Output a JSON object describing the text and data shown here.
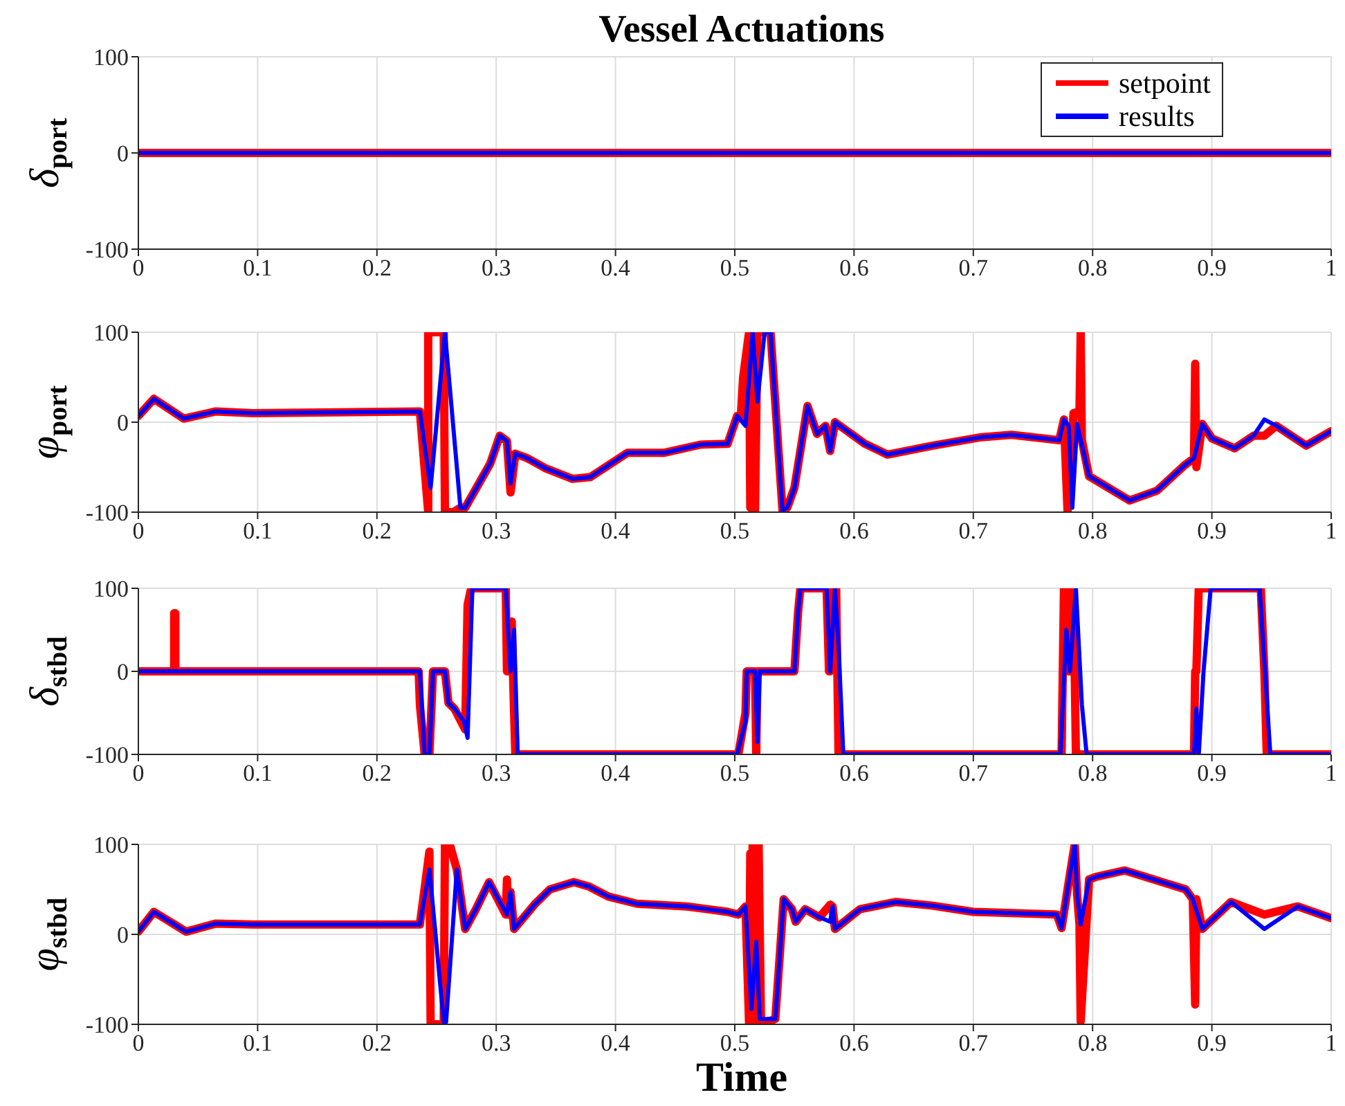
{
  "chart_data": [
    {
      "type": "line",
      "title": "Vessel Actuations",
      "ylabel": "δ$_{port}$",
      "xlim": [
        0,
        1
      ],
      "xticks": [
        0,
        0.1,
        0.2,
        0.3,
        0.4,
        0.5,
        0.6,
        0.7,
        0.8,
        0.9,
        1
      ],
      "ylim": [
        -100,
        100
      ],
      "yticks": [
        -100,
        0,
        100
      ],
      "grid": true,
      "legend": "top right",
      "series": [
        {
          "name": "setpoint",
          "color": "#ff0000",
          "x": [
            0,
            1
          ],
          "values": [
            0,
            0
          ]
        },
        {
          "name": "results",
          "color": "#0000ff",
          "x": [
            0,
            1
          ],
          "values": [
            0,
            0
          ]
        }
      ]
    },
    {
      "type": "line",
      "ylabel": "φ$_{port}$",
      "xlim": [
        0,
        1
      ],
      "xticks": [
        0,
        0.1,
        0.2,
        0.3,
        0.4,
        0.5,
        0.6,
        0.7,
        0.8,
        0.9,
        1
      ],
      "ylim": [
        -100,
        100
      ],
      "yticks": [
        -100,
        0,
        100
      ],
      "grid": true,
      "series": [
        {
          "color": "#ff0000",
          "x": [
            0,
            0.013,
            0.038,
            0.065,
            0.096,
            0.236,
            0.243,
            0.243,
            0.256,
            0.257,
            0.264,
            0.27,
            0.274,
            0.295,
            0.303,
            0.309,
            0.312,
            0.316,
            0.326,
            0.341,
            0.364,
            0.379,
            0.41,
            0.441,
            0.471,
            0.494,
            0.502,
            0.505,
            0.507,
            0.512,
            0.513,
            0.515,
            0.517,
            0.519,
            0.525,
            0.53,
            0.54,
            0.544,
            0.55,
            0.561,
            0.569,
            0.576,
            0.58,
            0.584,
            0.609,
            0.628,
            0.666,
            0.705,
            0.732,
            0.772,
            0.776,
            0.779,
            0.784,
            0.789,
            0.79,
            0.791,
            0.797,
            0.831,
            0.854,
            0.877,
            0.885,
            0.886,
            0.887,
            0.892,
            0.9,
            0.919,
            0.935,
            0.944,
            0.954,
            0.979,
            1
          ],
          "values": [
            7,
            26,
            4,
            12,
            10,
            12,
            -100,
            100,
            100,
            -100,
            -100,
            -95,
            -95,
            -46,
            -15,
            -21,
            -78,
            -35,
            -40,
            -51,
            -63,
            -61,
            -34,
            -34,
            -25,
            -24,
            7,
            5,
            50,
            100,
            -95,
            100,
            -100,
            100,
            100,
            100,
            -98,
            -95,
            -73,
            18,
            -13,
            -4,
            -32,
            0,
            -24,
            -36,
            -26,
            -17,
            -14,
            -20,
            3,
            -100,
            10,
            12,
            100,
            -20,
            -60,
            -87,
            -76,
            -48,
            -40,
            65,
            -50,
            -2,
            -18,
            -29,
            -15,
            -15,
            -4,
            -26,
            -10
          ]
        },
        {
          "color": "#0000ff",
          "x": [
            0,
            0.013,
            0.038,
            0.065,
            0.096,
            0.236,
            0.245,
            0.257,
            0.27,
            0.274,
            0.295,
            0.303,
            0.309,
            0.312,
            0.316,
            0.326,
            0.341,
            0.364,
            0.379,
            0.41,
            0.441,
            0.471,
            0.494,
            0.502,
            0.509,
            0.515,
            0.519,
            0.525,
            0.53,
            0.54,
            0.544,
            0.55,
            0.561,
            0.569,
            0.576,
            0.58,
            0.584,
            0.609,
            0.628,
            0.666,
            0.705,
            0.732,
            0.772,
            0.776,
            0.78,
            0.783,
            0.787,
            0.797,
            0.831,
            0.854,
            0.877,
            0.885,
            0.892,
            0.9,
            0.919,
            0.935,
            0.944,
            0.954,
            0.979,
            1
          ],
          "values": [
            7,
            26,
            4,
            12,
            10,
            12,
            -73,
            100,
            -95,
            -95,
            -46,
            -15,
            -21,
            -68,
            -35,
            -40,
            -51,
            -63,
            -61,
            -34,
            -34,
            -25,
            -24,
            7,
            -4,
            100,
            23,
            100,
            100,
            -98,
            -95,
            -73,
            18,
            -13,
            -4,
            -32,
            0,
            -24,
            -36,
            -26,
            -17,
            -14,
            -20,
            3,
            -4,
            -95,
            -2,
            -60,
            -87,
            -76,
            -48,
            -40,
            -2,
            -18,
            -29,
            -15,
            3,
            -4,
            -26,
            -10
          ]
        }
      ]
    },
    {
      "type": "line",
      "ylabel": "δ$_{stbd}$",
      "xlim": [
        0,
        1
      ],
      "xticks": [
        0,
        0.1,
        0.2,
        0.3,
        0.4,
        0.5,
        0.6,
        0.7,
        0.8,
        0.9,
        1
      ],
      "ylim": [
        -100,
        100
      ],
      "yticks": [
        -100,
        0,
        100
      ],
      "grid": true,
      "series": [
        {
          "color": "#ff0000",
          "x": [
            0,
            0.03,
            0.03,
            0.031,
            0.031,
            0.235,
            0.236,
            0.24,
            0.244,
            0.247,
            0.257,
            0.26,
            0.265,
            0.274,
            0.276,
            0.279,
            0.308,
            0.309,
            0.311,
            0.313,
            0.314,
            0.316,
            0.502,
            0.503,
            0.509,
            0.51,
            0.517,
            0.518,
            0.519,
            0.521,
            0.55,
            0.553,
            0.555,
            0.577,
            0.579,
            0.58,
            0.583,
            0.585,
            0.587,
            0.774,
            0.776,
            0.778,
            0.78,
            0.781,
            0.784,
            0.786,
            0.788,
            0.885,
            0.886,
            0.887,
            0.889,
            0.941,
            0.944,
            0.946,
            1
          ],
          "values": [
            0,
            0,
            70,
            70,
            0,
            0,
            -40,
            -100,
            -100,
            0,
            0,
            -38,
            -45,
            -70,
            80,
            100,
            100,
            0,
            0,
            60,
            0,
            -100,
            -100,
            -100,
            -50,
            0,
            0,
            -100,
            0,
            0,
            0,
            70,
            100,
            100,
            0,
            0,
            100,
            100,
            -100,
            -100,
            100,
            100,
            0,
            0,
            100,
            -100,
            -100,
            -100,
            0,
            0,
            100,
            100,
            0,
            -100,
            -100
          ]
        },
        {
          "color": "#0000ff",
          "x": [
            0,
            0.236,
            0.24,
            0.244,
            0.247,
            0.257,
            0.26,
            0.265,
            0.273,
            0.276,
            0.28,
            0.308,
            0.312,
            0.315,
            0.318,
            0.502,
            0.509,
            0.51,
            0.517,
            0.519,
            0.521,
            0.55,
            0.553,
            0.555,
            0.577,
            0.58,
            0.584,
            0.587,
            0.591,
            0.773,
            0.778,
            0.781,
            0.786,
            0.791,
            0.795,
            0.885,
            0.887,
            0.889,
            0.893,
            0.899,
            0.94,
            0.945,
            0.949,
            1
          ],
          "values": [
            0,
            0,
            -100,
            -100,
            0,
            0,
            -38,
            -45,
            -60,
            -80,
            100,
            100,
            0,
            50,
            -100,
            -100,
            -60,
            0,
            0,
            -85,
            0,
            0,
            70,
            100,
            100,
            0,
            100,
            30,
            -100,
            -100,
            50,
            0,
            100,
            -40,
            -100,
            -100,
            -45,
            -100,
            0,
            100,
            100,
            -10,
            -100,
            -100
          ]
        }
      ]
    },
    {
      "type": "line",
      "ylabel": "φ$_{stbd}$",
      "xlabel": "Time",
      "xlim": [
        0,
        1
      ],
      "xticks": [
        0,
        0.1,
        0.2,
        0.3,
        0.4,
        0.5,
        0.6,
        0.7,
        0.8,
        0.9,
        1
      ],
      "ylim": [
        -100,
        100
      ],
      "yticks": [
        -100,
        0,
        100
      ],
      "grid": true,
      "series": [
        {
          "color": "#ff0000",
          "x": [
            0,
            0.013,
            0.04,
            0.065,
            0.096,
            0.236,
            0.244,
            0.245,
            0.256,
            0.257,
            0.261,
            0.267,
            0.274,
            0.283,
            0.294,
            0.308,
            0.309,
            0.31,
            0.312,
            0.315,
            0.332,
            0.345,
            0.365,
            0.378,
            0.394,
            0.418,
            0.46,
            0.494,
            0.503,
            0.509,
            0.512,
            0.513,
            0.514,
            0.515,
            0.517,
            0.52,
            0.522,
            0.534,
            0.541,
            0.548,
            0.551,
            0.559,
            0.571,
            0.58,
            0.582,
            0.584,
            0.605,
            0.635,
            0.665,
            0.7,
            0.77,
            0.774,
            0.781,
            0.785,
            0.787,
            0.789,
            0.79,
            0.797,
            0.803,
            0.827,
            0.878,
            0.884,
            0.886,
            0.887,
            0.892,
            0.916,
            0.944,
            0.972,
            1
          ],
          "values": [
            3,
            25,
            3,
            12,
            11,
            11,
            92,
            -100,
            -100,
            100,
            100,
            72,
            6,
            28,
            58,
            22,
            61,
            22,
            47,
            6,
            33,
            50,
            58,
            53,
            42,
            34,
            31,
            25,
            22,
            31,
            -100,
            90,
            -100,
            100,
            -100,
            100,
            -100,
            -94,
            39,
            28,
            14,
            28,
            19,
            33,
            31,
            6,
            28,
            36,
            32,
            25,
            22,
            7,
            67,
            100,
            44,
            11,
            -97,
            61,
            64,
            71,
            50,
            39,
            -78,
            39,
            6,
            36,
            22,
            31,
            18
          ]
        },
        {
          "color": "#0000ff",
          "x": [
            0,
            0.013,
            0.04,
            0.065,
            0.096,
            0.236,
            0.244,
            0.256,
            0.258,
            0.267,
            0.274,
            0.283,
            0.294,
            0.309,
            0.312,
            0.315,
            0.332,
            0.345,
            0.365,
            0.378,
            0.394,
            0.418,
            0.46,
            0.494,
            0.503,
            0.509,
            0.514,
            0.518,
            0.521,
            0.534,
            0.541,
            0.548,
            0.551,
            0.559,
            0.571,
            0.58,
            0.582,
            0.584,
            0.605,
            0.635,
            0.665,
            0.7,
            0.77,
            0.774,
            0.781,
            0.785,
            0.787,
            0.79,
            0.797,
            0.803,
            0.827,
            0.878,
            0.884,
            0.892,
            0.916,
            0.944,
            0.972,
            1
          ],
          "values": [
            3,
            25,
            3,
            12,
            11,
            11,
            72,
            -97,
            -97,
            72,
            6,
            28,
            58,
            22,
            47,
            6,
            33,
            50,
            58,
            53,
            42,
            34,
            31,
            25,
            22,
            31,
            -83,
            -8,
            -94,
            -94,
            39,
            28,
            14,
            28,
            19,
            14,
            31,
            6,
            28,
            36,
            32,
            25,
            22,
            7,
            67,
            100,
            44,
            11,
            61,
            64,
            71,
            50,
            39,
            6,
            36,
            6,
            31,
            18
          ]
        }
      ]
    }
  ]
}
